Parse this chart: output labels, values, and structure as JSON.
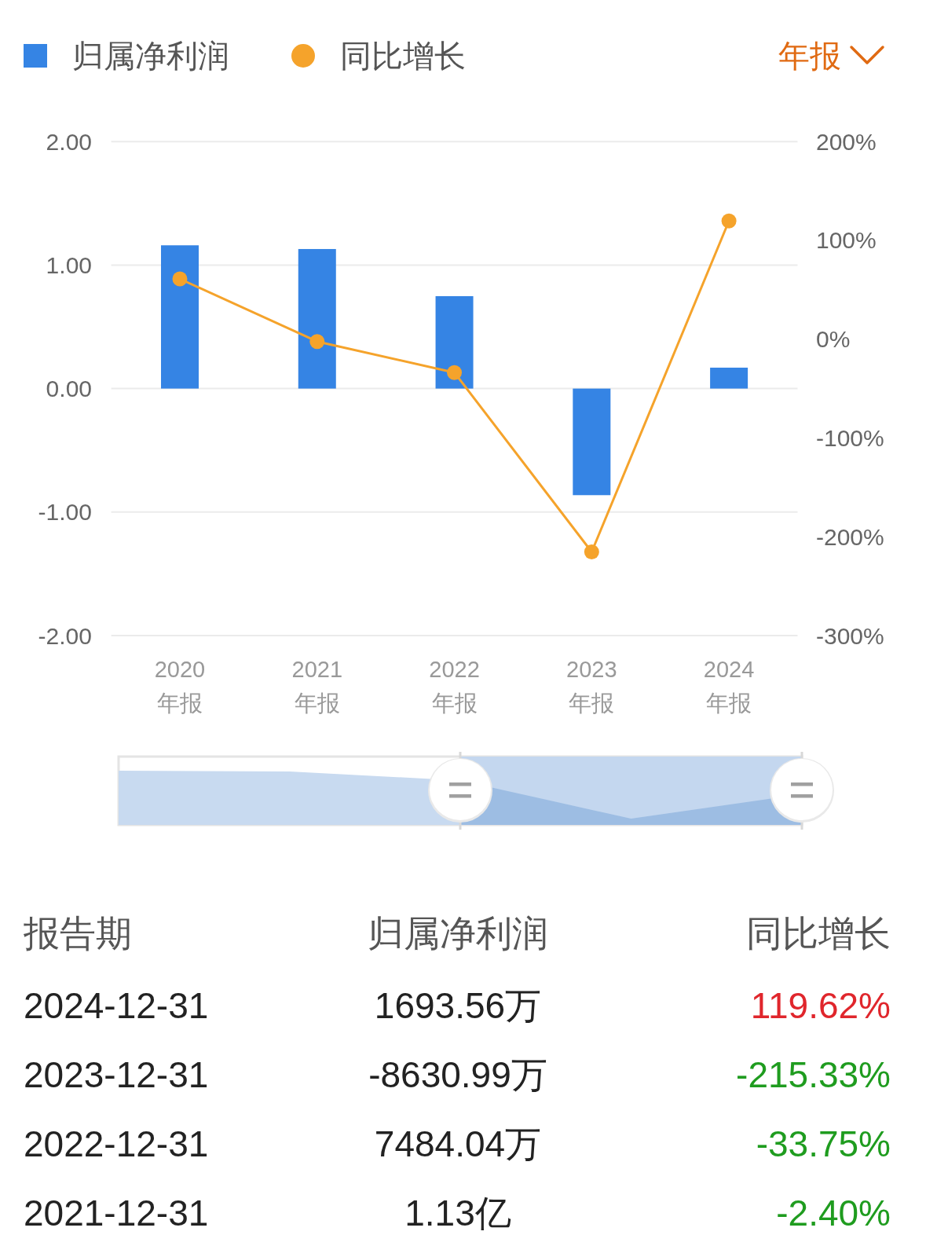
{
  "chart_data": {
    "type": "bar",
    "categories": [
      "2020\n年报",
      "2021\n年报",
      "2022\n年报",
      "2023\n年报",
      "2024\n年报"
    ],
    "series": [
      {
        "name": "归属净利润",
        "color": "#3584e4",
        "values": [
          1.16,
          1.13,
          0.748404,
          -0.863099,
          0.169356
        ]
      },
      {
        "name": "同比增长",
        "type": "line",
        "axis": "y2",
        "color": "#f5a32b",
        "values": [
          61,
          -2.4,
          -33.75,
          -215.33,
          119.62
        ]
      }
    ],
    "ylim": [
      -2,
      2
    ],
    "yticks": [
      {
        "value": 2,
        "label": "2.00"
      },
      {
        "value": 1,
        "label": "1.00"
      },
      {
        "value": 0,
        "label": "0.00"
      },
      {
        "value": -1,
        "label": "-1.00"
      },
      {
        "value": -2,
        "label": "-2.00"
      }
    ],
    "y2lim": [
      -300,
      200
    ],
    "y2ticks": [
      {
        "value": 200,
        "label": "200%"
      },
      {
        "value": 100,
        "label": "100%"
      },
      {
        "value": 0,
        "label": "0%"
      },
      {
        "value": -100,
        "label": "-100%"
      },
      {
        "value": -200,
        "label": "-200%"
      },
      {
        "value": -300,
        "label": "-300%"
      }
    ],
    "grid": "y",
    "legend": "top left",
    "marker": "circle",
    "annotations": [
      "年报",
      "报告期",
      "2024-12-31",
      "1693.56万",
      "119.62%",
      "2023-12-31",
      "-8630.99万",
      "-215.33%",
      "2022-12-31",
      "7484.04万",
      "-33.75%",
      "2021-12-31",
      "1.13亿",
      "-2.40%"
    ]
  }
}
